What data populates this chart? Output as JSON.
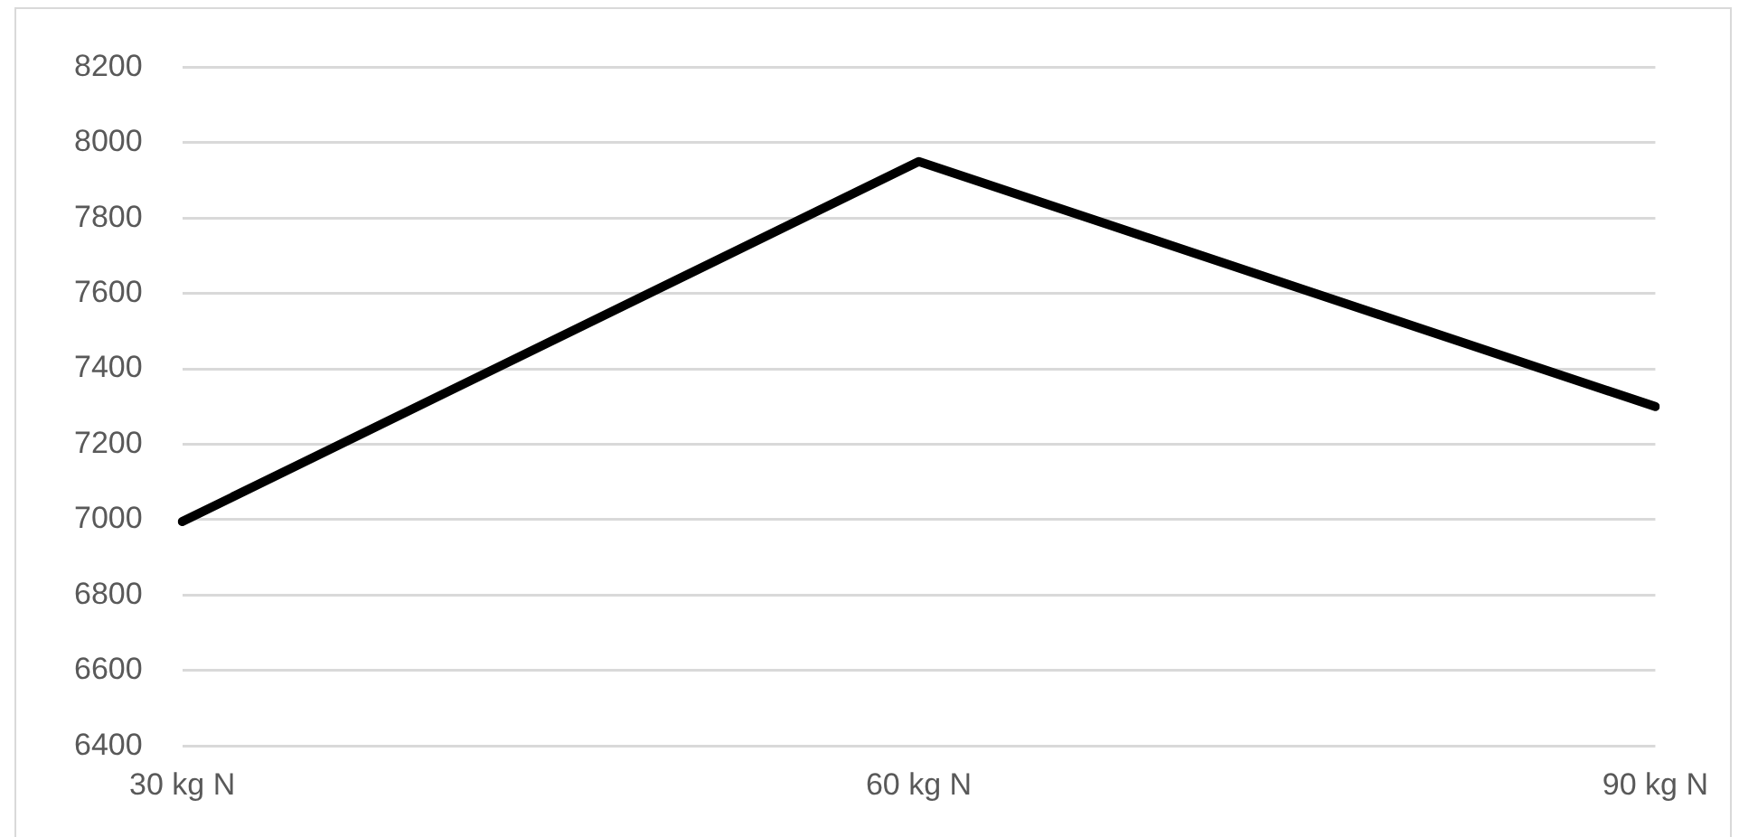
{
  "chart_data": {
    "type": "line",
    "categories": [
      "30 kg N",
      "60 kg N",
      "90 kg N"
    ],
    "series": [
      {
        "color": "#000000",
        "values": [
          6995,
          7950,
          7300
        ]
      }
    ],
    "ylim": [
      6400,
      8200
    ],
    "yticks": [
      6400,
      6600,
      6800,
      7000,
      7200,
      7400,
      7600,
      7800,
      8000,
      8200
    ],
    "grid": "y",
    "legend": false,
    "marker": "none",
    "line_style": "solid"
  }
}
